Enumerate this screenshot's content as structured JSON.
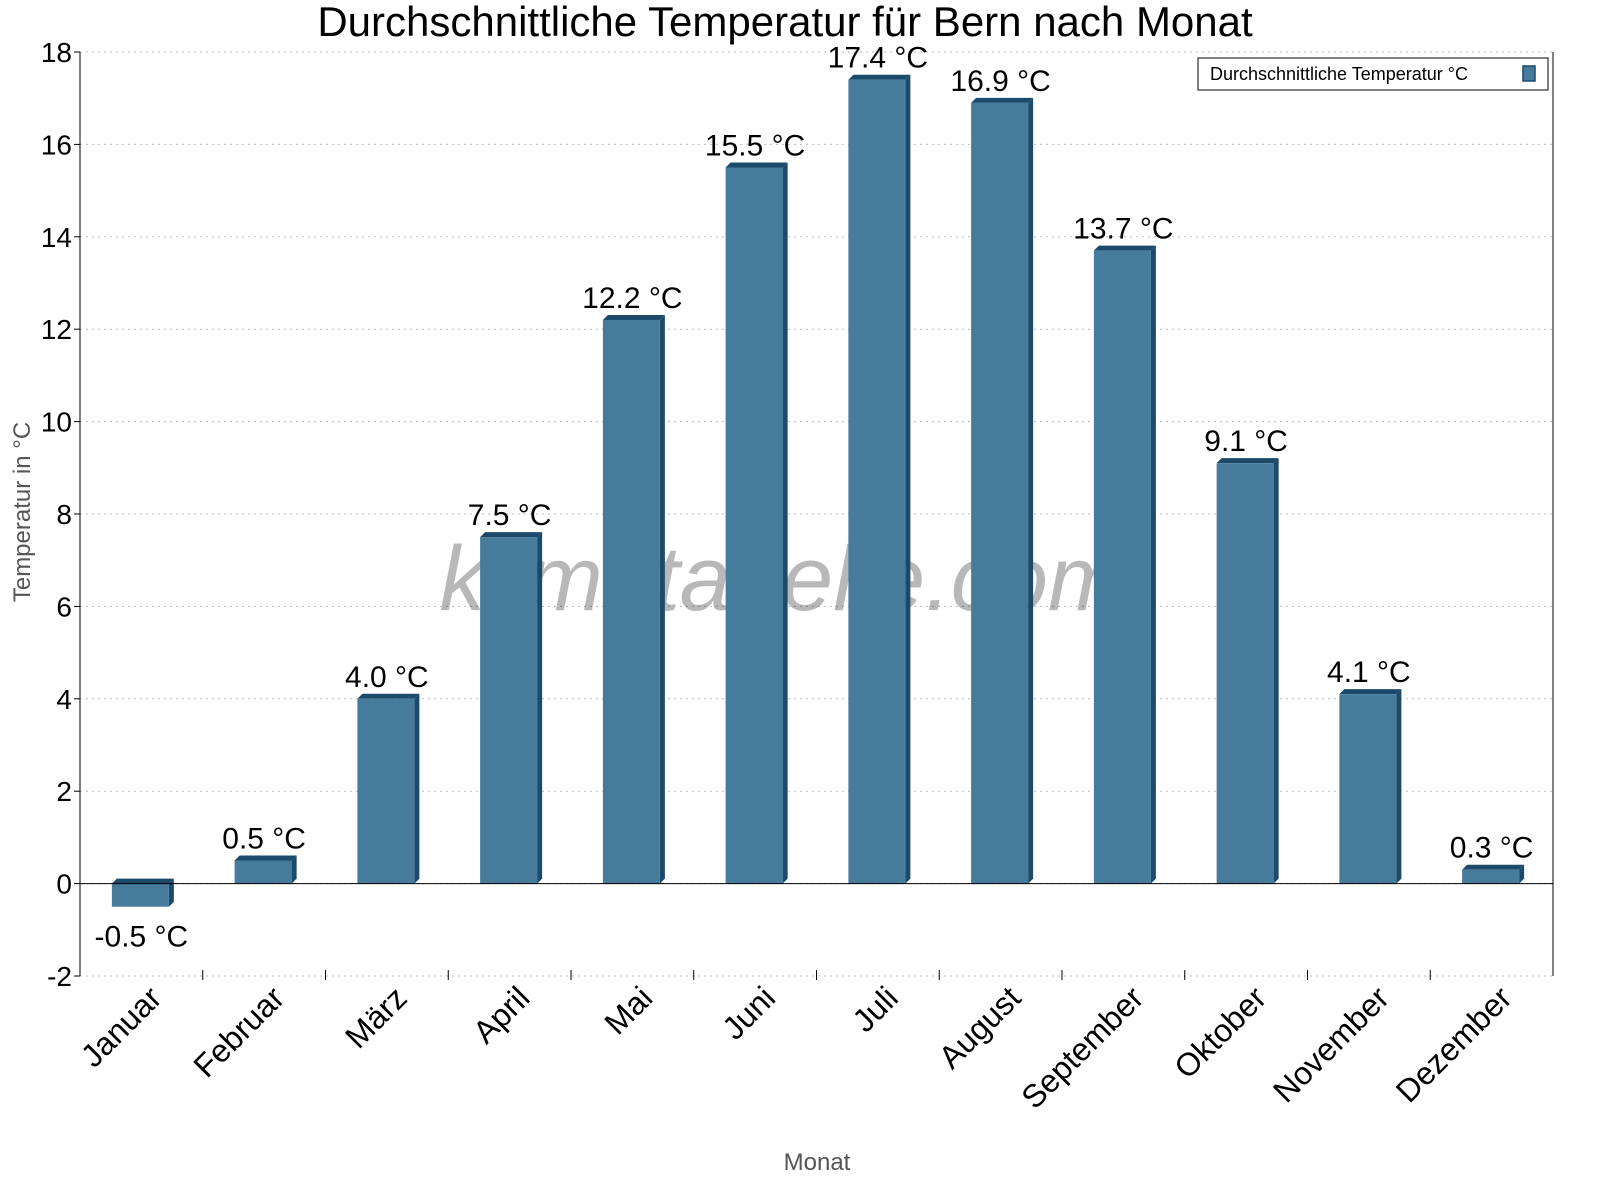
{
  "chart_data": {
    "type": "bar",
    "title": "Durchschnittliche Temperatur für Bern nach Monat",
    "xlabel": "Monat",
    "ylabel": "Temperatur in °C",
    "categories": [
      "Januar",
      "Februar",
      "März",
      "April",
      "Mai",
      "Juni",
      "Juli",
      "August",
      "September",
      "Oktober",
      "November",
      "Dezember"
    ],
    "series": [
      {
        "name": "Durchschnittliche Temperatur °C",
        "values": [
          -0.5,
          0.5,
          4.0,
          7.5,
          12.2,
          15.5,
          17.4,
          16.9,
          13.7,
          9.1,
          4.1,
          0.3
        ]
      }
    ],
    "data_labels": [
      "-0.5 °C",
      "0.5 °C",
      "4.0 °C",
      "7.5 °C",
      "12.2 °C",
      "15.5 °C",
      "17.4 °C",
      "16.9 °C",
      "13.7 °C",
      "9.1 °C",
      "4.1 °C",
      "0.3 °C"
    ],
    "ylim": [
      -2,
      18
    ],
    "yticks": [
      "-2",
      "0",
      "2",
      "4",
      "6",
      "8",
      "10",
      "12",
      "14",
      "16",
      "18"
    ],
    "grid": true,
    "legend_position": "top-right",
    "colors": {
      "bar_face": "#467b9c",
      "bar_edge": "#1b4a6b"
    },
    "watermark": "klimatabelle.com"
  }
}
